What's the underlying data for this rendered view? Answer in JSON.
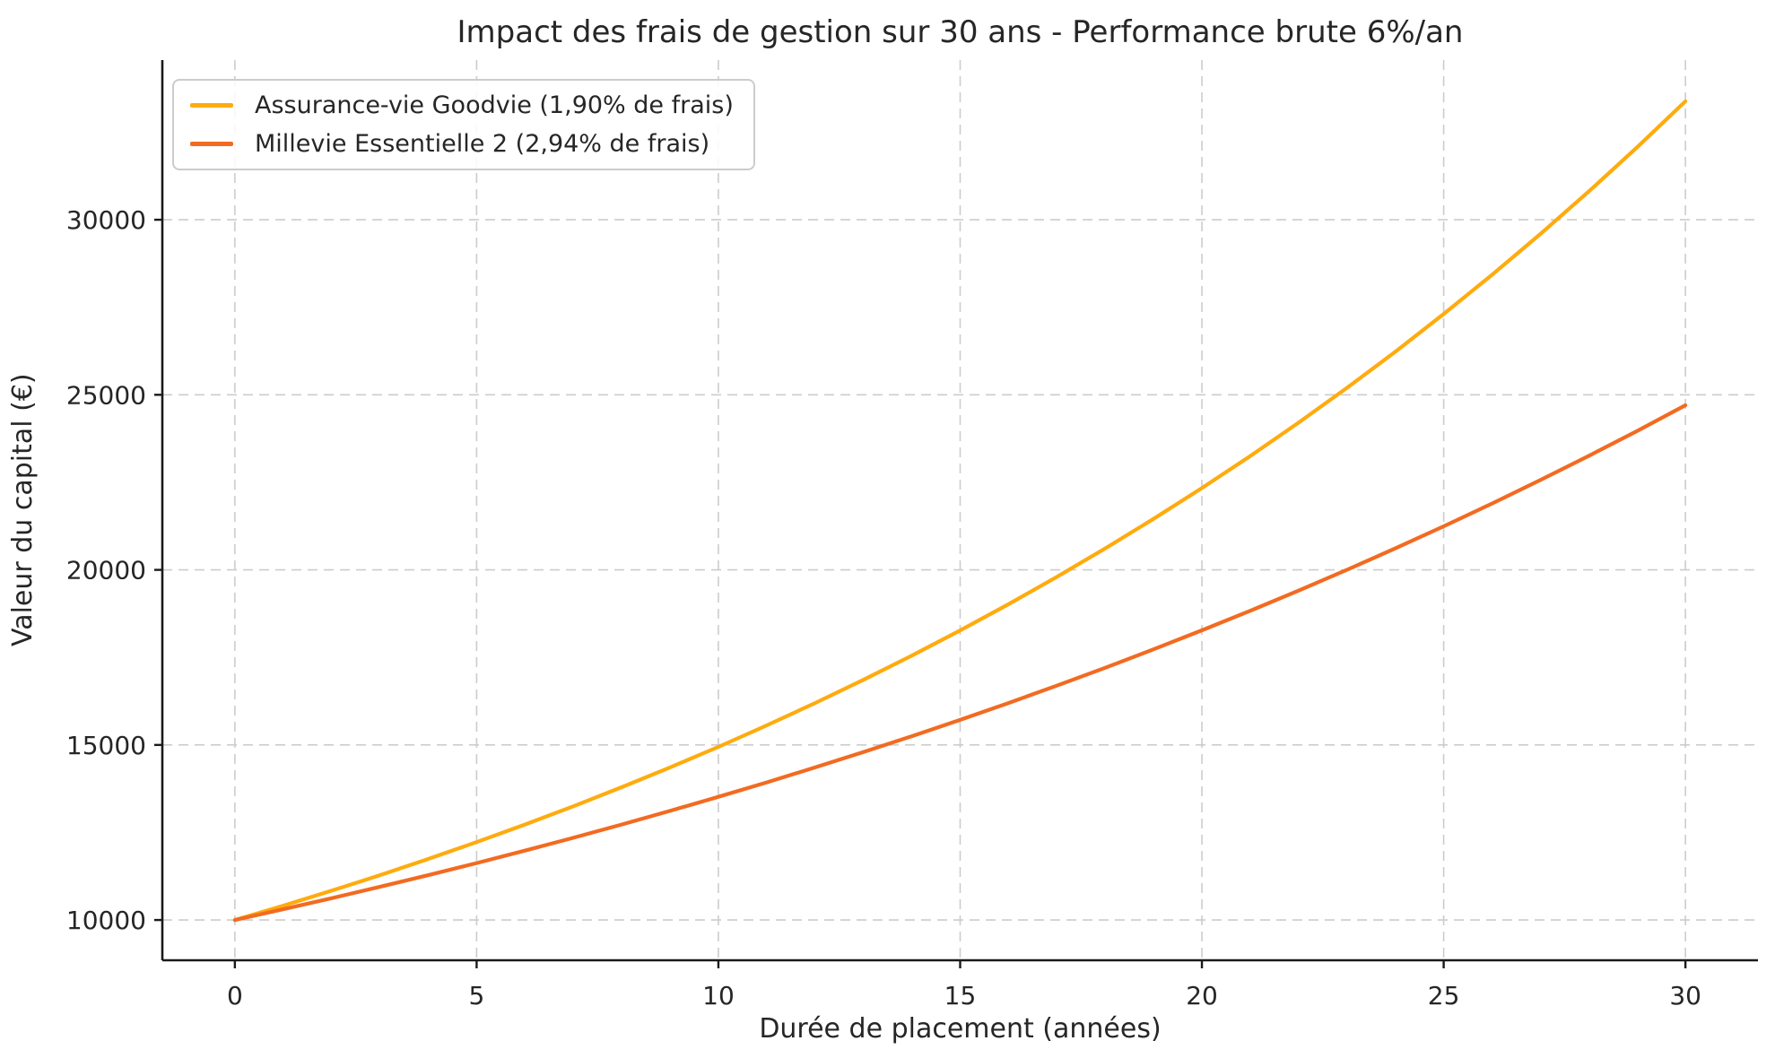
{
  "page": {
    "background": "#ffffff"
  },
  "chart_data": {
    "type": "line",
    "title": "Impact des frais de gestion sur 30 ans - Performance brute 6%/an",
    "xlabel": "Durée de placement (années)",
    "ylabel": "Valeur du capital (€)",
    "x": [
      0,
      1,
      2,
      3,
      4,
      5,
      6,
      7,
      8,
      9,
      10,
      11,
      12,
      13,
      14,
      15,
      16,
      17,
      18,
      19,
      20,
      21,
      22,
      23,
      24,
      25,
      26,
      27,
      28,
      29,
      30
    ],
    "series": [
      {
        "name": "Assurance-vie Goodvie (1,90% de frais)",
        "color": "#FFAB0E",
        "values": [
          10000,
          10410,
          10837,
          11281,
          11744,
          12225,
          12726,
          13248,
          13791,
          14357,
          14945,
          15558,
          16196,
          16860,
          17551,
          18271,
          19020,
          19800,
          20612,
          21457,
          22336,
          23252,
          24206,
          25198,
          26231,
          27307,
          28426,
          29592,
          30805,
          32068,
          33383
        ]
      },
      {
        "name": "Millevie Essentielle 2 (2,94% de frais)",
        "color": "#F26B21",
        "values": [
          10000,
          10306,
          10621,
          10946,
          11281,
          11627,
          11982,
          12349,
          12727,
          13116,
          13518,
          13931,
          14358,
          14797,
          15250,
          15716,
          16197,
          16693,
          17204,
          17730,
          18273,
          18832,
          19408,
          20002,
          20614,
          21245,
          21895,
          22565,
          23255,
          23967,
          24700
        ]
      }
    ],
    "xticks": {
      "values": [
        0,
        5,
        10,
        15,
        20,
        25,
        30
      ],
      "labels": [
        "0",
        "5",
        "10",
        "15",
        "20",
        "25",
        "30"
      ]
    },
    "yticks": {
      "values": [
        10000,
        15000,
        20000,
        25000,
        30000
      ],
      "labels": [
        "10000",
        "15000",
        "20000",
        "25000",
        "30000"
      ]
    },
    "xlim": [
      -1.5,
      31.5
    ],
    "ylim": [
      8850,
      34560
    ],
    "grid": true,
    "grid_linestyle": "dashed",
    "grid_color": "#cccccc",
    "axis_color": "#1a1a1a",
    "text_color": "#262626",
    "legend_position": "upper-left"
  }
}
